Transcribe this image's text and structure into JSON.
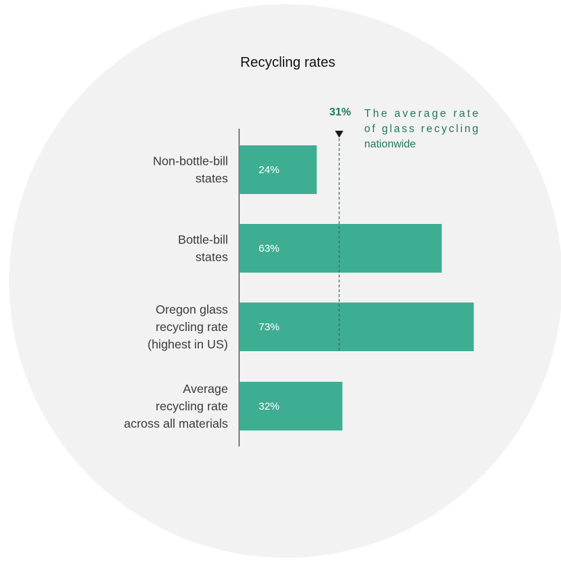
{
  "colors": {
    "background_circle": "#f2f2f2",
    "bar": "#3dae91",
    "axis": "#595959",
    "reference": "#1e7b5a",
    "reference_line": "#2f6b55",
    "marker": "#1a1a1a"
  },
  "chart_data": {
    "type": "bar",
    "orientation": "horizontal",
    "title": "Recycling rates",
    "categories": [
      [
        "Non-bottle-bill",
        "states"
      ],
      [
        "Bottle-bill",
        "states"
      ],
      [
        "Oregon glass",
        "recycling rate",
        "(highest in US)"
      ],
      [
        "Average",
        "recycling rate",
        "across all materials"
      ]
    ],
    "values": [
      24,
      63,
      73,
      32
    ],
    "value_labels": [
      "24%",
      "63%",
      "73%",
      "32%"
    ],
    "xlim": [
      0,
      100
    ],
    "grid": false,
    "reference_line": {
      "value": 31,
      "label": "31%",
      "note": [
        "The average rate",
        "of glass recycling",
        "nationwide"
      ]
    }
  }
}
